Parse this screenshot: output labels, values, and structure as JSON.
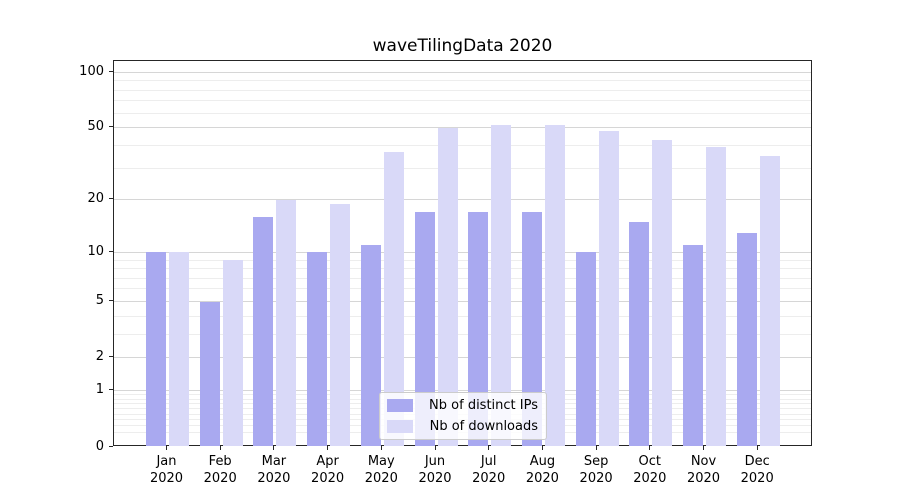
{
  "title": "waveTilingData 2020",
  "chart_data": {
    "type": "bar",
    "title": "waveTilingData 2020",
    "scale": "log1p",
    "grid": true,
    "legend_position": "lower center",
    "xlabel": "",
    "ylabel": "",
    "ylim": [
      0,
      115
    ],
    "categories": [
      "Jan 2020",
      "Feb 2020",
      "Mar 2020",
      "Apr 2020",
      "May 2020",
      "Jun 2020",
      "Jul 2020",
      "Aug 2020",
      "Sep 2020",
      "Oct 2020",
      "Nov 2020",
      "Dec 2020"
    ],
    "series": [
      {
        "name": "Nb of distinct IPs",
        "color": "#a9a9f0",
        "values": [
          10,
          5,
          16,
          10,
          11,
          17,
          17,
          17,
          10,
          15,
          11,
          13
        ]
      },
      {
        "name": "Nb of downloads",
        "color": "#d9d9f8",
        "values": [
          10,
          9,
          20,
          19,
          37,
          50,
          52,
          52,
          48,
          43,
          39,
          35
        ]
      }
    ],
    "y_major_ticks": [
      100,
      50,
      20,
      10,
      5,
      2,
      1,
      0
    ],
    "y_minor_gridlines": [
      0.2,
      0.3,
      0.4,
      0.5,
      0.6,
      0.7,
      0.8,
      0.9,
      3,
      4,
      6,
      7,
      8,
      9,
      30,
      40,
      60,
      70,
      80,
      90
    ]
  },
  "legend": {
    "items": [
      {
        "label": "Nb of distinct IPs",
        "color": "#a9a9f0"
      },
      {
        "label": "Nb of downloads",
        "color": "#d9d9f8"
      }
    ]
  },
  "colors": {
    "series_dark": "#a9a9f0",
    "series_light": "#d9d9f8",
    "grid_major": "#d6d6d6",
    "grid_minor": "#ededed",
    "spine": "#262626",
    "background": "#ffffff"
  }
}
